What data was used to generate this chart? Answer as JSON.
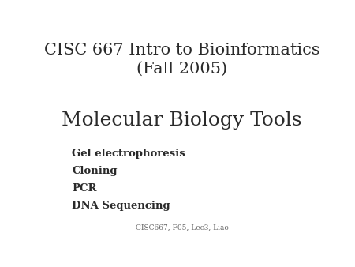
{
  "background_color": "#ffffff",
  "title_line1": "CISC 667 Intro to Bioinformatics",
  "title_line2": "(Fall 2005)",
  "subtitle": "Molecular Biology Tools",
  "bullet_items": [
    "Gel electrophoresis",
    "Cloning",
    "PCR",
    "DNA Sequencing"
  ],
  "footer": "CISC667, F05, Lec3, Liao",
  "title_fontsize": 15,
  "subtitle_fontsize": 18,
  "bullet_fontsize": 9.5,
  "footer_fontsize": 6.5,
  "text_color": "#2a2a2a",
  "footer_color": "#666666"
}
